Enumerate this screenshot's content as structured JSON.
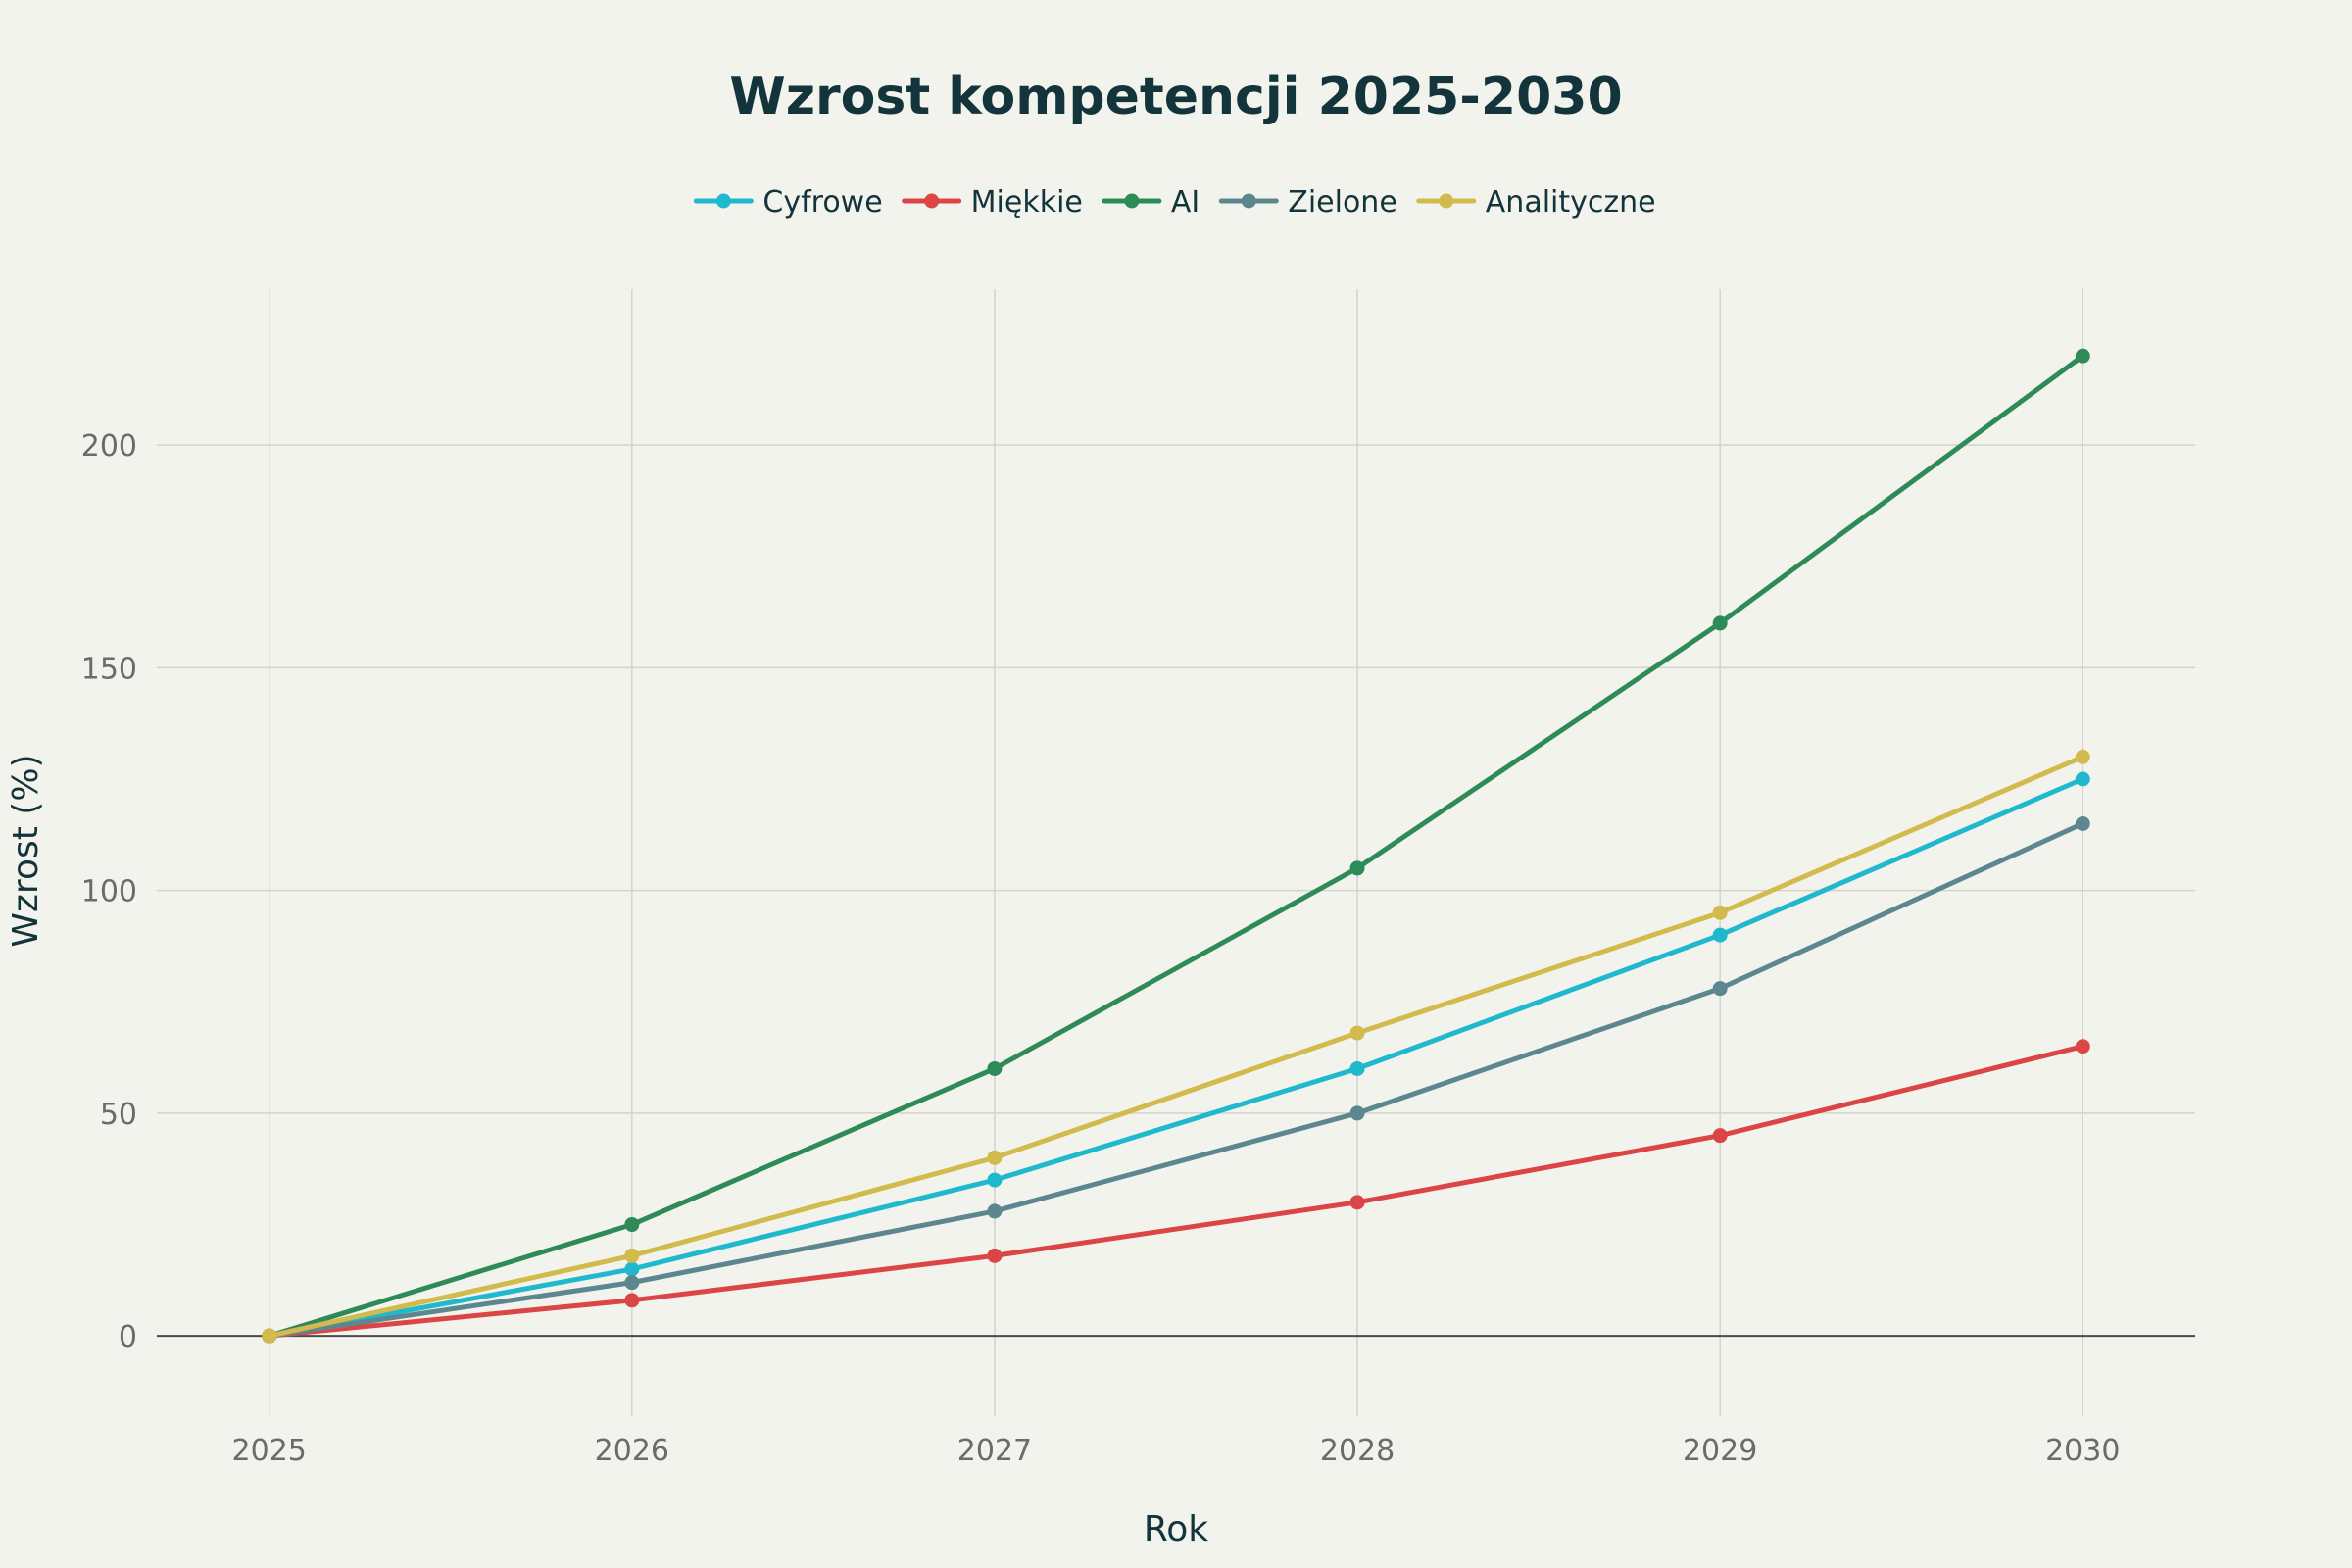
{
  "chart_data": {
    "type": "line",
    "title": "Wzrost kompetencji 2025-2030",
    "xlabel": "Rok",
    "ylabel": "Wzrost (%)",
    "x": [
      2025,
      2026,
      2027,
      2028,
      2029,
      2030
    ],
    "x_tick_labels": [
      "2025",
      "2026",
      "2027",
      "2028",
      "2029",
      "2030"
    ],
    "y_ticks": [
      0,
      50,
      100,
      150,
      200
    ],
    "y_tick_labels": [
      "0",
      "50",
      "100",
      "150",
      "200"
    ],
    "xlim": [
      2024.69,
      2030.31
    ],
    "ylim": [
      -18,
      235
    ],
    "grid": true,
    "legend_position": "top-center",
    "series": [
      {
        "name": "Cyfrowe",
        "color": "#1fb8cd",
        "values": [
          0,
          15,
          35,
          60,
          90,
          125
        ]
      },
      {
        "name": "Miękkie",
        "color": "#db4545",
        "values": [
          0,
          8,
          18,
          30,
          45,
          65
        ]
      },
      {
        "name": "AI",
        "color": "#2e8b57",
        "values": [
          0,
          25,
          60,
          105,
          160,
          220
        ]
      },
      {
        "name": "Zielone",
        "color": "#5d878f",
        "values": [
          0,
          12,
          28,
          50,
          78,
          115
        ]
      },
      {
        "name": "Analityczne",
        "color": "#d2ba4c",
        "values": [
          0,
          18,
          40,
          68,
          95,
          130
        ]
      }
    ]
  }
}
